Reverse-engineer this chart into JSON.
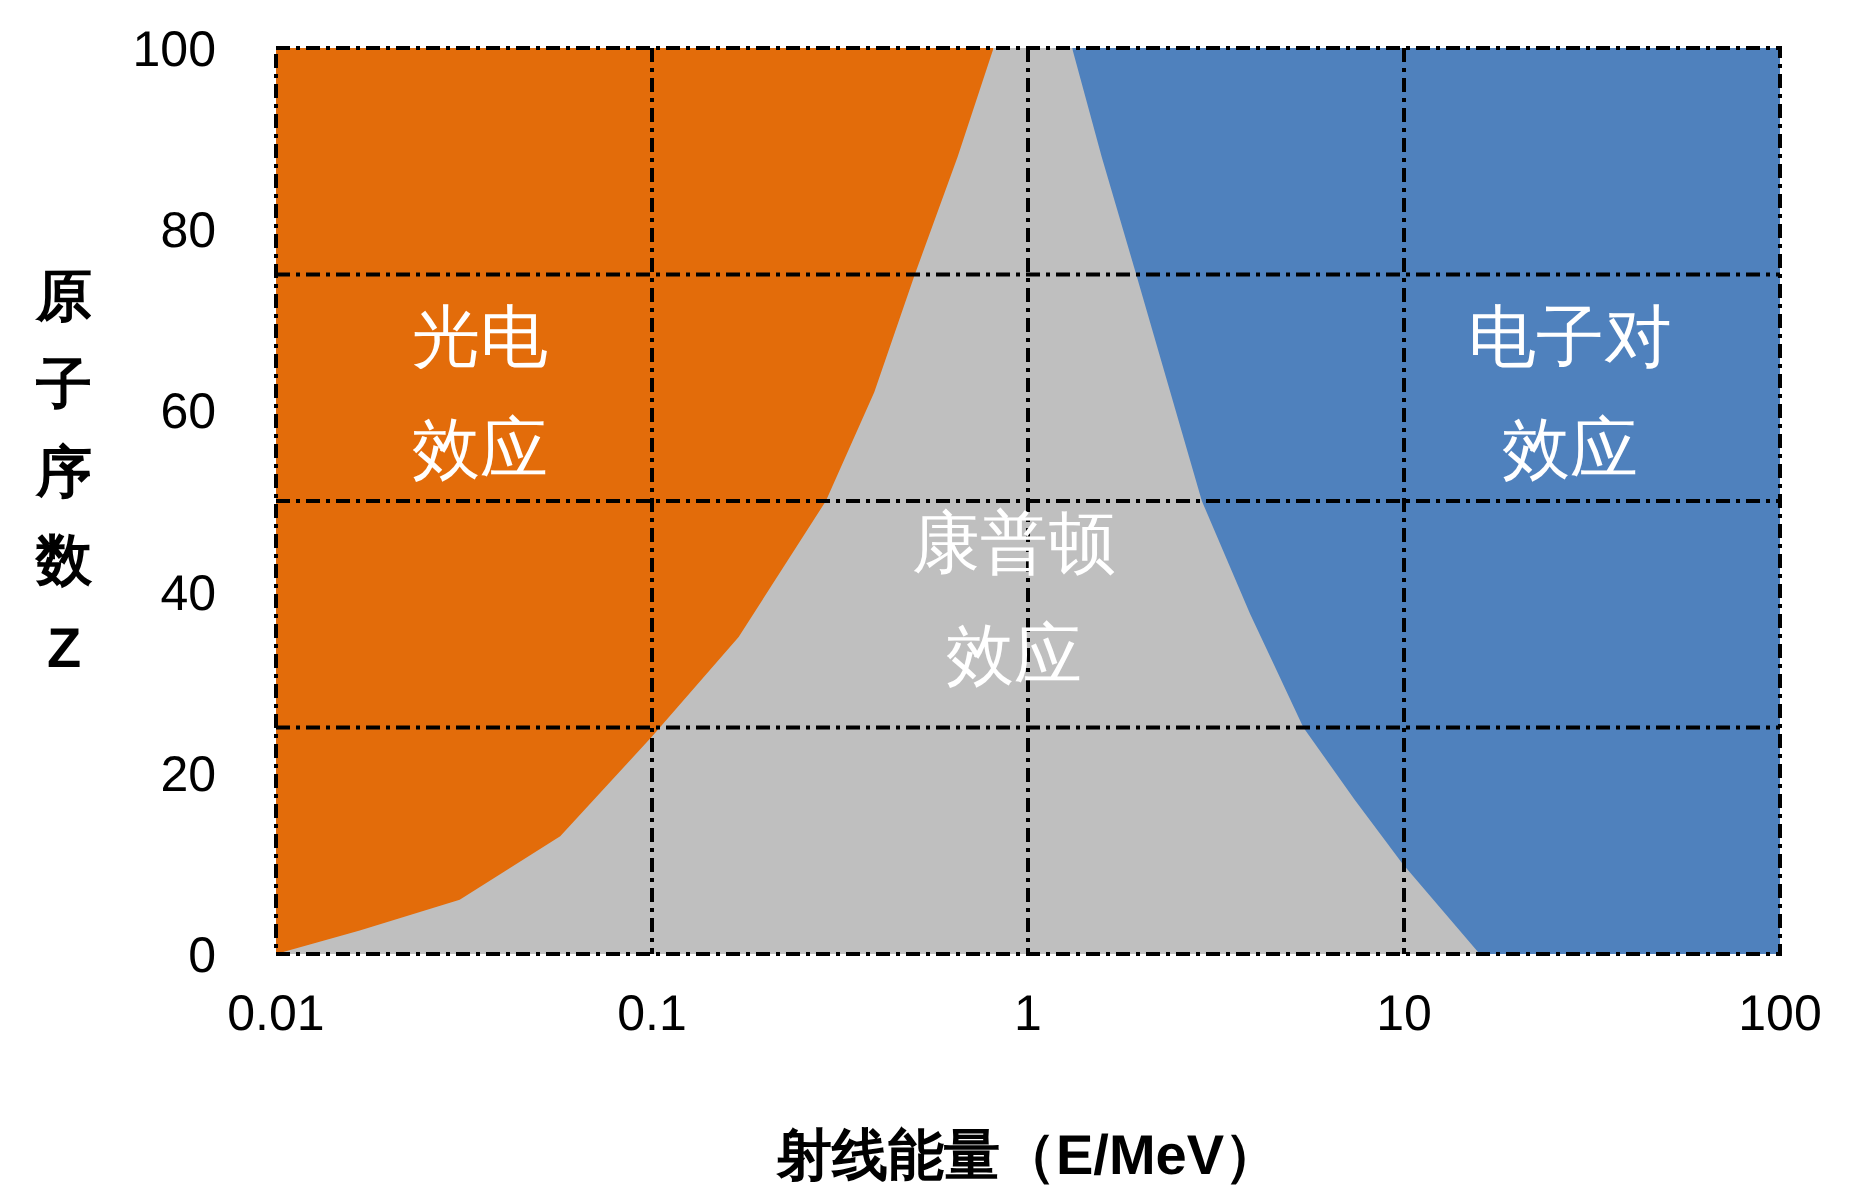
{
  "chart_data": {
    "type": "area",
    "xlabel": "射线能量（E/MeV）",
    "ylabel": "原子序数Z",
    "log": "x",
    "xlim": [
      0.01,
      100
    ],
    "xticks": [
      0.01,
      0.1,
      1,
      10,
      100
    ],
    "ylim": [
      0,
      100
    ],
    "yticks": [
      0,
      20,
      40,
      60,
      80,
      100
    ],
    "grid": "x",
    "line_style": "dashdot",
    "series": [
      {
        "color": "#e36c0a",
        "x": [
          0.01,
          0.81
        ],
        "values": [
          100,
          100
        ]
      },
      {
        "color": "#4f81bd",
        "x": [
          1.31,
          100
        ],
        "values": [
          100,
          100
        ]
      },
      {
        "color": "#bfbfbf",
        "x": [
          0.01,
          0.0167,
          0.0308,
          0.057,
          0.1,
          0.17,
          0.29,
          0.39,
          0.5,
          0.65,
          0.81,
          1.31,
          1.57,
          1.94,
          2.9,
          3.9,
          5.4,
          7.4,
          9.9,
          15.9,
          100
        ],
        "values": [
          0,
          2.6,
          6,
          13,
          24,
          35,
          50,
          62,
          75,
          88,
          100,
          100,
          88,
          75,
          50,
          37.5,
          25,
          17,
          10,
          0,
          0
        ]
      }
    ],
    "ref_lines": [
      {
        "axis": "y",
        "value": 25,
        "line_style": "dashdot",
        "color": "#000000"
      },
      {
        "axis": "y",
        "value": 50,
        "line_style": "dashdot",
        "color": "#000000"
      },
      {
        "axis": "y",
        "value": 75,
        "line_style": "dashdot",
        "color": "#000000"
      }
    ],
    "annotations": [
      "光电效应",
      "康普顿效应",
      "电子对效应"
    ]
  }
}
